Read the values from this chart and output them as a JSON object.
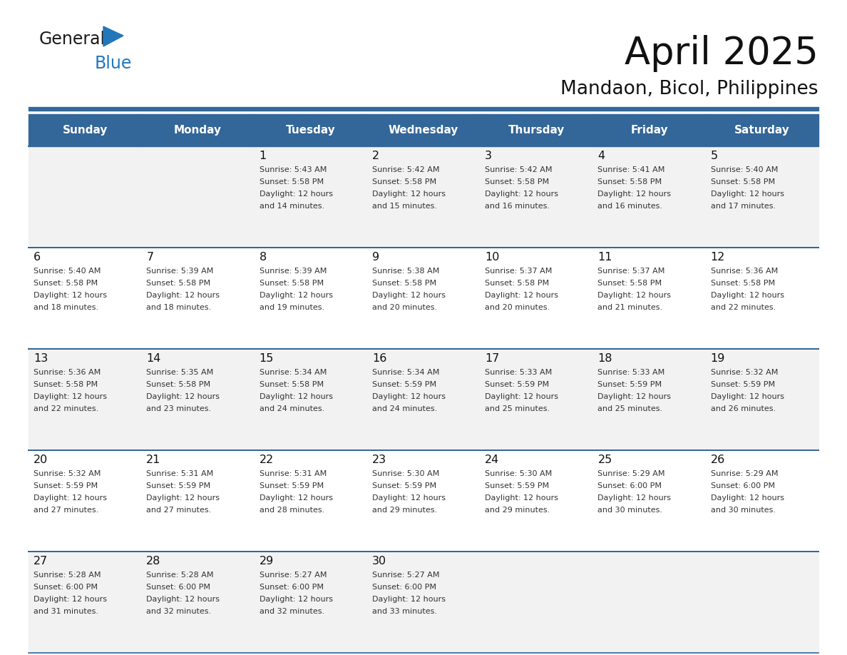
{
  "title": "April 2025",
  "subtitle": "Mandaon, Bicol, Philippines",
  "days_of_week": [
    "Sunday",
    "Monday",
    "Tuesday",
    "Wednesday",
    "Thursday",
    "Friday",
    "Saturday"
  ],
  "header_bg": "#336699",
  "header_text": "#FFFFFF",
  "cell_bg_odd": "#F2F2F2",
  "cell_bg_even": "#FFFFFF",
  "border_color": "#336699",
  "text_color": "#333333",
  "day_number_color": "#111111",
  "calendar_data": [
    [
      {
        "day": null,
        "sunrise": null,
        "sunset": null,
        "daylight_a": null,
        "daylight_b": null
      },
      {
        "day": null,
        "sunrise": null,
        "sunset": null,
        "daylight_a": null,
        "daylight_b": null
      },
      {
        "day": "1",
        "sunrise": "5:43 AM",
        "sunset": "5:58 PM",
        "daylight_a": "Daylight: 12 hours",
        "daylight_b": "and 14 minutes."
      },
      {
        "day": "2",
        "sunrise": "5:42 AM",
        "sunset": "5:58 PM",
        "daylight_a": "Daylight: 12 hours",
        "daylight_b": "and 15 minutes."
      },
      {
        "day": "3",
        "sunrise": "5:42 AM",
        "sunset": "5:58 PM",
        "daylight_a": "Daylight: 12 hours",
        "daylight_b": "and 16 minutes."
      },
      {
        "day": "4",
        "sunrise": "5:41 AM",
        "sunset": "5:58 PM",
        "daylight_a": "Daylight: 12 hours",
        "daylight_b": "and 16 minutes."
      },
      {
        "day": "5",
        "sunrise": "5:40 AM",
        "sunset": "5:58 PM",
        "daylight_a": "Daylight: 12 hours",
        "daylight_b": "and 17 minutes."
      }
    ],
    [
      {
        "day": "6",
        "sunrise": "5:40 AM",
        "sunset": "5:58 PM",
        "daylight_a": "Daylight: 12 hours",
        "daylight_b": "and 18 minutes."
      },
      {
        "day": "7",
        "sunrise": "5:39 AM",
        "sunset": "5:58 PM",
        "daylight_a": "Daylight: 12 hours",
        "daylight_b": "and 18 minutes."
      },
      {
        "day": "8",
        "sunrise": "5:39 AM",
        "sunset": "5:58 PM",
        "daylight_a": "Daylight: 12 hours",
        "daylight_b": "and 19 minutes."
      },
      {
        "day": "9",
        "sunrise": "5:38 AM",
        "sunset": "5:58 PM",
        "daylight_a": "Daylight: 12 hours",
        "daylight_b": "and 20 minutes."
      },
      {
        "day": "10",
        "sunrise": "5:37 AM",
        "sunset": "5:58 PM",
        "daylight_a": "Daylight: 12 hours",
        "daylight_b": "and 20 minutes."
      },
      {
        "day": "11",
        "sunrise": "5:37 AM",
        "sunset": "5:58 PM",
        "daylight_a": "Daylight: 12 hours",
        "daylight_b": "and 21 minutes."
      },
      {
        "day": "12",
        "sunrise": "5:36 AM",
        "sunset": "5:58 PM",
        "daylight_a": "Daylight: 12 hours",
        "daylight_b": "and 22 minutes."
      }
    ],
    [
      {
        "day": "13",
        "sunrise": "5:36 AM",
        "sunset": "5:58 PM",
        "daylight_a": "Daylight: 12 hours",
        "daylight_b": "and 22 minutes."
      },
      {
        "day": "14",
        "sunrise": "5:35 AM",
        "sunset": "5:58 PM",
        "daylight_a": "Daylight: 12 hours",
        "daylight_b": "and 23 minutes."
      },
      {
        "day": "15",
        "sunrise": "5:34 AM",
        "sunset": "5:58 PM",
        "daylight_a": "Daylight: 12 hours",
        "daylight_b": "and 24 minutes."
      },
      {
        "day": "16",
        "sunrise": "5:34 AM",
        "sunset": "5:59 PM",
        "daylight_a": "Daylight: 12 hours",
        "daylight_b": "and 24 minutes."
      },
      {
        "day": "17",
        "sunrise": "5:33 AM",
        "sunset": "5:59 PM",
        "daylight_a": "Daylight: 12 hours",
        "daylight_b": "and 25 minutes."
      },
      {
        "day": "18",
        "sunrise": "5:33 AM",
        "sunset": "5:59 PM",
        "daylight_a": "Daylight: 12 hours",
        "daylight_b": "and 25 minutes."
      },
      {
        "day": "19",
        "sunrise": "5:32 AM",
        "sunset": "5:59 PM",
        "daylight_a": "Daylight: 12 hours",
        "daylight_b": "and 26 minutes."
      }
    ],
    [
      {
        "day": "20",
        "sunrise": "5:32 AM",
        "sunset": "5:59 PM",
        "daylight_a": "Daylight: 12 hours",
        "daylight_b": "and 27 minutes."
      },
      {
        "day": "21",
        "sunrise": "5:31 AM",
        "sunset": "5:59 PM",
        "daylight_a": "Daylight: 12 hours",
        "daylight_b": "and 27 minutes."
      },
      {
        "day": "22",
        "sunrise": "5:31 AM",
        "sunset": "5:59 PM",
        "daylight_a": "Daylight: 12 hours",
        "daylight_b": "and 28 minutes."
      },
      {
        "day": "23",
        "sunrise": "5:30 AM",
        "sunset": "5:59 PM",
        "daylight_a": "Daylight: 12 hours",
        "daylight_b": "and 29 minutes."
      },
      {
        "day": "24",
        "sunrise": "5:30 AM",
        "sunset": "5:59 PM",
        "daylight_a": "Daylight: 12 hours",
        "daylight_b": "and 29 minutes."
      },
      {
        "day": "25",
        "sunrise": "5:29 AM",
        "sunset": "6:00 PM",
        "daylight_a": "Daylight: 12 hours",
        "daylight_b": "and 30 minutes."
      },
      {
        "day": "26",
        "sunrise": "5:29 AM",
        "sunset": "6:00 PM",
        "daylight_a": "Daylight: 12 hours",
        "daylight_b": "and 30 minutes."
      }
    ],
    [
      {
        "day": "27",
        "sunrise": "5:28 AM",
        "sunset": "6:00 PM",
        "daylight_a": "Daylight: 12 hours",
        "daylight_b": "and 31 minutes."
      },
      {
        "day": "28",
        "sunrise": "5:28 AM",
        "sunset": "6:00 PM",
        "daylight_a": "Daylight: 12 hours",
        "daylight_b": "and 32 minutes."
      },
      {
        "day": "29",
        "sunrise": "5:27 AM",
        "sunset": "6:00 PM",
        "daylight_a": "Daylight: 12 hours",
        "daylight_b": "and 32 minutes."
      },
      {
        "day": "30",
        "sunrise": "5:27 AM",
        "sunset": "6:00 PM",
        "daylight_a": "Daylight: 12 hours",
        "daylight_b": "and 33 minutes."
      },
      {
        "day": null,
        "sunrise": null,
        "sunset": null,
        "daylight_a": null,
        "daylight_b": null
      },
      {
        "day": null,
        "sunrise": null,
        "sunset": null,
        "daylight_a": null,
        "daylight_b": null
      },
      {
        "day": null,
        "sunrise": null,
        "sunset": null,
        "daylight_a": null,
        "daylight_b": null
      }
    ]
  ]
}
